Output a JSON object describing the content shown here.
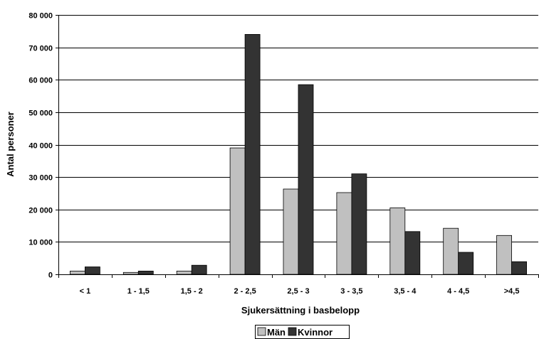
{
  "chart_data": {
    "type": "bar",
    "categories": [
      "< 1",
      "1 - 1,5",
      "1,5 - 2",
      "2 - 2,5",
      "2,5 - 3",
      "3 - 3,5",
      "3,5 - 4",
      "4 - 4,5",
      ">4,5"
    ],
    "series": [
      {
        "name": "Män",
        "values": [
          1000,
          600,
          1000,
          39000,
          26300,
          25200,
          20500,
          14200,
          12000
        ]
      },
      {
        "name": "Kvinnor",
        "values": [
          2300,
          1000,
          2800,
          74000,
          58500,
          31000,
          13200,
          6800,
          3900
        ]
      }
    ],
    "title": "",
    "xlabel": "Sjukersättning i basbelopp",
    "ylabel": "Antal personer",
    "ylim": [
      0,
      80000
    ],
    "yticks": [
      0,
      10000,
      20000,
      30000,
      40000,
      50000,
      60000,
      70000,
      80000
    ],
    "ytick_labels": [
      "0",
      "10 000",
      "20 000",
      "30 000",
      "40 000",
      "50 000",
      "60 000",
      "70 000",
      "80 000"
    ],
    "grid": true,
    "legend_position": "bottom",
    "colors": {
      "Män": "#c0c0c0",
      "Kvinnor": "#333333"
    }
  }
}
